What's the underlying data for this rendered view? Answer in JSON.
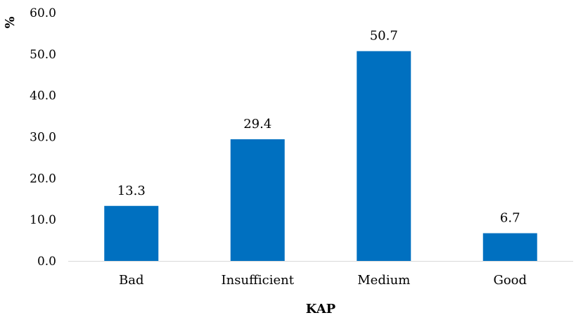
{
  "chart_data": {
    "type": "bar",
    "title": "",
    "xlabel": "KAP",
    "ylabel": "%",
    "categories": [
      "Bad",
      "Insufficient",
      "Medium",
      "Good"
    ],
    "values": [
      13.3,
      29.4,
      50.7,
      6.7
    ],
    "data_labels": [
      "13.3",
      "29.4",
      "50.7",
      "6.7"
    ],
    "ylim": [
      0,
      60
    ],
    "yticks": [
      0,
      10,
      20,
      30,
      40,
      50,
      60
    ],
    "ytick_labels": [
      "0.0",
      "10.0",
      "20.0",
      "30.0",
      "40.0",
      "50.0",
      "60.0"
    ],
    "grid": false,
    "legend": "none",
    "bar_color": "#0070C0",
    "axis_color": "#D9D9D9"
  }
}
